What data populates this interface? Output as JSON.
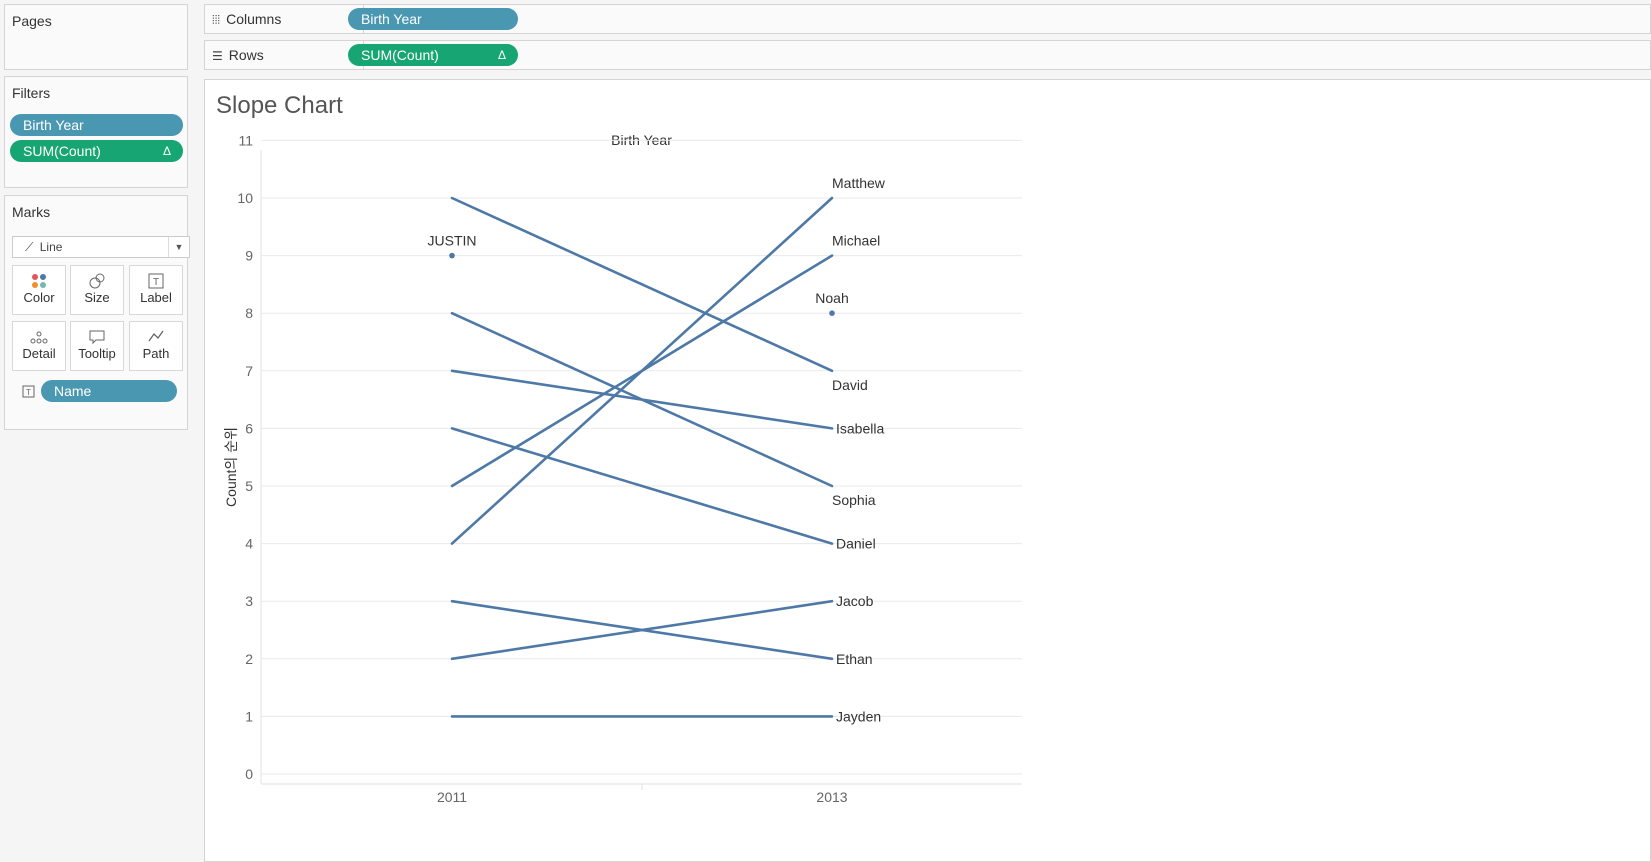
{
  "pages": {
    "title": "Pages"
  },
  "columns": {
    "label": "Columns",
    "icon": "columns-icon",
    "pill": "Birth Year"
  },
  "rows": {
    "label": "Rows",
    "icon": "rows-icon",
    "pill": "SUM(Count)",
    "pill_icon": "Δ"
  },
  "filters": {
    "title": "Filters",
    "items": [
      {
        "label": "Birth Year",
        "color": "#4a97b1"
      },
      {
        "label": "SUM(Count)",
        "color": "#17a673",
        "icon": "Δ"
      }
    ]
  },
  "marks": {
    "title": "Marks",
    "mark_type": "Line",
    "buttons": [
      {
        "label": "Color",
        "icon": "color-icon"
      },
      {
        "label": "Size",
        "icon": "size-icon"
      },
      {
        "label": "Label",
        "icon": "label-icon"
      },
      {
        "label": "Detail",
        "icon": "detail-icon"
      },
      {
        "label": "Tooltip",
        "icon": "tooltip-icon"
      },
      {
        "label": "Path",
        "icon": "path-icon"
      }
    ],
    "field_pill": "Name",
    "field_icon": "label-icon"
  },
  "sheet": {
    "title": "Slope Chart"
  },
  "chart_data": {
    "type": "line",
    "header": "Birth Year",
    "ylabel": "Count의 순위",
    "x": [
      "2011",
      "2013"
    ],
    "ylim": [
      0,
      11
    ],
    "yticks": [
      0,
      1,
      2,
      3,
      4,
      5,
      6,
      7,
      8,
      9,
      10,
      11
    ],
    "grid": true,
    "line_color": "#4e79a7",
    "series": [
      {
        "name": "Matthew",
        "values": [
          4,
          10
        ]
      },
      {
        "name": "Michael",
        "values": [
          5,
          9
        ]
      },
      {
        "name": "David",
        "values": [
          10,
          7
        ]
      },
      {
        "name": "Isabella",
        "values": [
          7,
          6
        ]
      },
      {
        "name": "Sophia",
        "values": [
          8,
          5
        ]
      },
      {
        "name": "Daniel",
        "values": [
          6,
          4
        ]
      },
      {
        "name": "Jacob",
        "values": [
          2,
          3
        ]
      },
      {
        "name": "Ethan",
        "values": [
          3,
          2
        ]
      },
      {
        "name": "Jayden",
        "values": [
          1,
          1
        ]
      },
      {
        "name": "JUSTIN",
        "values": [
          9,
          null
        ]
      },
      {
        "name": "Noah",
        "values": [
          null,
          8
        ]
      }
    ]
  }
}
